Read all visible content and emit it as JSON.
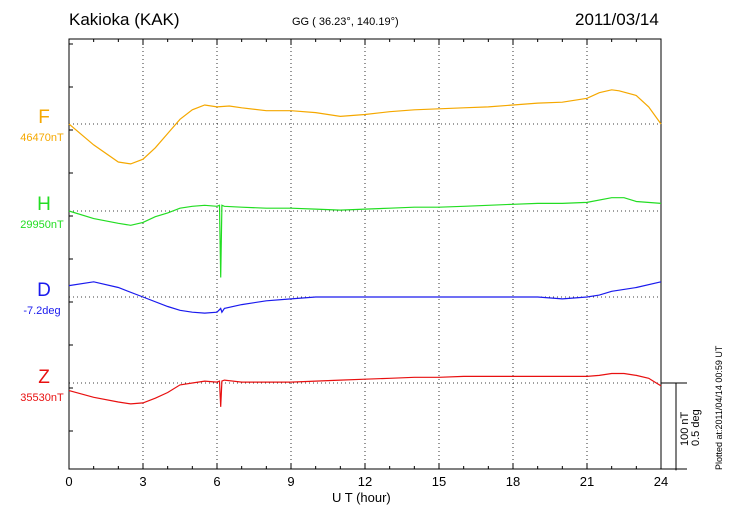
{
  "header": {
    "station": "Kakioka (KAK)",
    "coords": "GG ( 36.23°, 140.19°)",
    "date": "2011/03/14"
  },
  "chart_data": {
    "type": "line",
    "xlabel": "U T (hour)",
    "xlim": [
      0,
      24
    ],
    "xticks": [
      "0",
      "3",
      "6",
      "9",
      "12",
      "15",
      "18",
      "21",
      "24"
    ],
    "grid": true,
    "scale": {
      "label": "100 nT\n0.5 deg",
      "nT": 100,
      "deg": 0.5
    },
    "series": [
      {
        "name": "F",
        "baseline": "46470nT",
        "color": "#f5a800",
        "x": [
          0,
          1,
          2,
          2.5,
          3,
          3.5,
          4,
          4.5,
          5,
          5.5,
          6,
          6.5,
          7,
          8,
          9,
          10,
          11,
          12,
          13,
          14,
          15,
          16,
          17,
          18,
          19,
          20,
          21,
          21.5,
          22,
          22.3,
          23,
          23.5,
          24
        ],
        "y": [
          0,
          -22,
          -40,
          -42,
          -37,
          -25,
          -10,
          5,
          15,
          20,
          18,
          19,
          17,
          14,
          14,
          12,
          8,
          10,
          13,
          15,
          16,
          17,
          18,
          20,
          22,
          23,
          27,
          33,
          36,
          35,
          30,
          18,
          0
        ]
      },
      {
        "name": "H",
        "baseline": "29950nT",
        "color": "#22dd22",
        "x": [
          0,
          1,
          2,
          2.5,
          3,
          3.5,
          4,
          4.5,
          5,
          5.5,
          6,
          6.1,
          6.15,
          6.2,
          6.3,
          7,
          8,
          9,
          10,
          11,
          12,
          13,
          14,
          15,
          16,
          17,
          18,
          19,
          20,
          21,
          22,
          22.5,
          23,
          24
        ],
        "y": [
          0,
          -8,
          -13,
          -15,
          -12,
          -6,
          -2,
          3,
          5,
          6,
          5,
          6,
          -70,
          6,
          5,
          4,
          3,
          3,
          2,
          1,
          2,
          3,
          4,
          4,
          5,
          6,
          7,
          8,
          8,
          9,
          14,
          14,
          10,
          8
        ]
      },
      {
        "name": "D",
        "baseline": "-7.2deg",
        "color": "#1a1aee",
        "x": [
          0,
          1,
          2,
          3,
          4,
          4.5,
          5,
          5.5,
          6,
          6.15,
          6.2,
          6.3,
          7,
          8,
          9,
          10,
          11,
          12,
          13,
          14,
          15,
          16,
          17,
          18,
          19,
          20,
          21,
          21.5,
          22,
          23,
          24
        ],
        "y": [
          0.06,
          0.08,
          0.05,
          0.0,
          -0.05,
          -0.07,
          -0.08,
          -0.085,
          -0.08,
          -0.06,
          -0.08,
          -0.06,
          -0.04,
          -0.02,
          -0.01,
          0.0,
          0.0,
          0.0,
          0.0,
          0.0,
          0.0,
          0.0,
          0.0,
          0.0,
          0.0,
          -0.01,
          0.0,
          0.01,
          0.03,
          0.05,
          0.08
        ]
      },
      {
        "name": "Z",
        "baseline": "35530nT",
        "color": "#e81010",
        "x": [
          0,
          1,
          2,
          2.5,
          3,
          3.5,
          4,
          4.5,
          5,
          5.5,
          6,
          6.1,
          6.15,
          6.2,
          6.3,
          7,
          8,
          9,
          10,
          11,
          12,
          13,
          14,
          15,
          16,
          17,
          18,
          19,
          20,
          21,
          21.5,
          22,
          22.5,
          23,
          23.5,
          24
        ],
        "y": [
          -8,
          -15,
          -20,
          -22,
          -21,
          -16,
          -10,
          -2,
          0,
          2,
          1,
          2,
          -25,
          2,
          3,
          1,
          1,
          1,
          2,
          3,
          4,
          5,
          6,
          6,
          7,
          7,
          7,
          7,
          7,
          7,
          8,
          10,
          10,
          8,
          5,
          -3
        ]
      }
    ]
  },
  "footer": {
    "plotted": "Plotted at:2011/04/14 00:59 UT"
  }
}
